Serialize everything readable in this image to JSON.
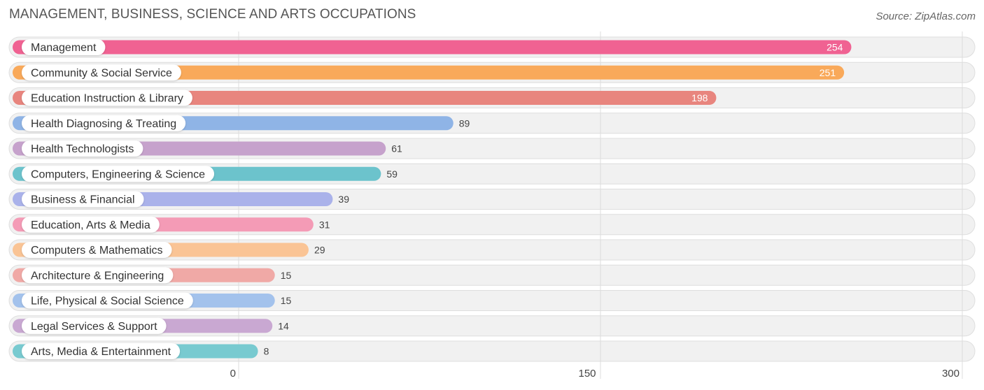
{
  "chart_data": {
    "type": "bar",
    "orientation": "horizontal",
    "title": "MANAGEMENT, BUSINESS, SCIENCE AND ARTS OCCUPATIONS",
    "source": "Source: ZipAtlas.com",
    "categories": [
      "Management",
      "Community & Social Service",
      "Education Instruction & Library",
      "Health Diagnosing & Treating",
      "Health Technologists",
      "Computers, Engineering & Science",
      "Business & Financial",
      "Education, Arts & Media",
      "Computers & Mathematics",
      "Architecture & Engineering",
      "Life, Physical & Social Science",
      "Legal Services & Support",
      "Arts, Media & Entertainment"
    ],
    "values": [
      254,
      251,
      198,
      89,
      61,
      59,
      39,
      31,
      29,
      15,
      15,
      14,
      8
    ],
    "colors": [
      "#f06292",
      "#f9a95a",
      "#e8857e",
      "#8fb4e6",
      "#c6a2cc",
      "#6cc3cc",
      "#aab2ea",
      "#f49bb6",
      "#fac495",
      "#f0a9a6",
      "#a3c2ec",
      "#c9a8d2",
      "#78cad0"
    ],
    "xlim": [
      0,
      300
    ],
    "xticks": [
      0,
      150,
      300
    ],
    "xlabel": "",
    "ylabel": "",
    "grid": true
  }
}
